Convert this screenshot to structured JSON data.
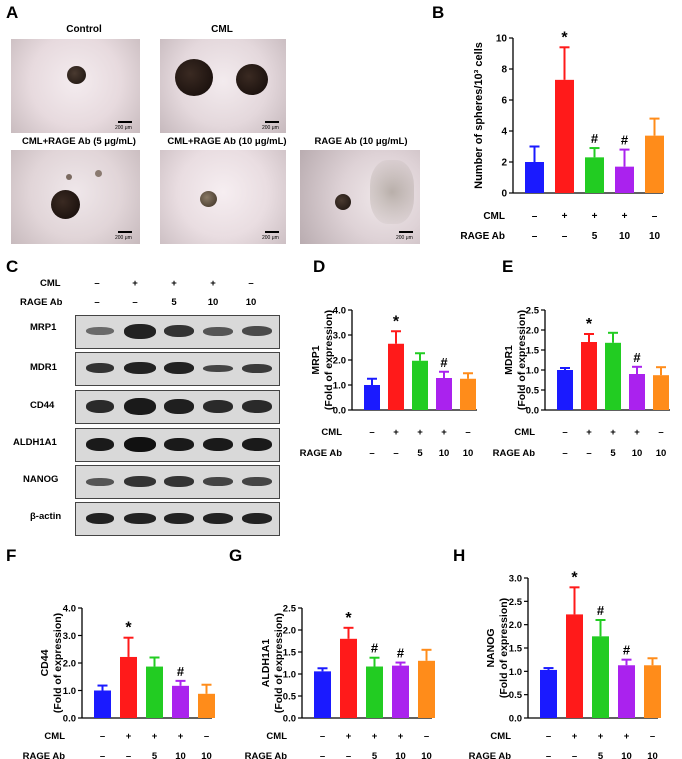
{
  "panel_letters": [
    "A",
    "B",
    "C",
    "D",
    "E",
    "F",
    "G",
    "H"
  ],
  "micrographs": [
    {
      "title": "Control",
      "scale": "200 μm"
    },
    {
      "title": "CML",
      "scale": "200 μm"
    },
    {
      "title": "CML+RAGE Ab (5 μg/mL)",
      "scale": "200 μm"
    },
    {
      "title": "CML+RAGE Ab (10 μg/mL)",
      "scale": "200 μm"
    },
    {
      "title": "RAGE Ab (10 μg/mL)",
      "scale": "200 μm"
    }
  ],
  "conditions": {
    "cml_label": "CML",
    "rage_label": "RAGE Ab",
    "cml": [
      "–",
      "+",
      "+",
      "+",
      "–"
    ],
    "rage": [
      "–",
      "–",
      "5",
      "10",
      "10"
    ]
  },
  "blots": {
    "proteins": [
      "MRP1",
      "MDR1",
      "CD44",
      "ALDH1A1",
      "NANOG",
      "β-actin"
    ],
    "cml": [
      "–",
      "+",
      "+",
      "+",
      "–"
    ],
    "rage": [
      "–",
      "–",
      "5",
      "10",
      "10"
    ]
  },
  "colors": [
    "#1a1aff",
    "#ff1a1a",
    "#22cc22",
    "#aa22ee",
    "#ff8c1a"
  ],
  "chart_data": [
    {
      "type": "bar",
      "panel": "B",
      "categories": [
        "1",
        "2",
        "3",
        "4",
        "5"
      ],
      "values": [
        2.0,
        7.3,
        2.3,
        1.7,
        3.7
      ],
      "errors": [
        1.0,
        2.1,
        0.6,
        1.1,
        1.1
      ],
      "marks": [
        "",
        "*",
        "#",
        "#",
        ""
      ],
      "ylabel": "Number of spheres/10³ cells",
      "ylim": [
        0,
        10
      ],
      "yticks": [
        "0",
        "2",
        "4",
        "6",
        "8",
        "10"
      ]
    },
    {
      "type": "bar",
      "panel": "D",
      "categories": [
        "1",
        "2",
        "3",
        "4",
        "5"
      ],
      "values": [
        1.0,
        2.65,
        1.97,
        1.28,
        1.25
      ],
      "errors": [
        0.25,
        0.5,
        0.3,
        0.25,
        0.22
      ],
      "marks": [
        "",
        "*",
        "",
        "#",
        ""
      ],
      "ylabel": "MRP1",
      "ylabel2": "(Fold of expression)",
      "ylim": [
        0,
        4
      ],
      "yticks": [
        "0.0",
        "1.0",
        "2.0",
        "3.0",
        "4.0"
      ]
    },
    {
      "type": "bar",
      "panel": "E",
      "categories": [
        "1",
        "2",
        "3",
        "4",
        "5"
      ],
      "values": [
        1.0,
        1.7,
        1.68,
        0.9,
        0.87
      ],
      "errors": [
        0.05,
        0.2,
        0.25,
        0.18,
        0.2
      ],
      "marks": [
        "",
        "*",
        "",
        "#",
        ""
      ],
      "ylabel": "MDR1",
      "ylabel2": "(Fold of expression)",
      "ylim": [
        0,
        2.5
      ],
      "yticks": [
        "0.0",
        "0.5",
        "1.0",
        "1.5",
        "2.0",
        "2.5"
      ]
    },
    {
      "type": "bar",
      "panel": "F",
      "categories": [
        "1",
        "2",
        "3",
        "4",
        "5"
      ],
      "values": [
        1.0,
        2.22,
        1.87,
        1.17,
        0.88
      ],
      "errors": [
        0.18,
        0.7,
        0.33,
        0.18,
        0.33
      ],
      "marks": [
        "",
        "*",
        "",
        "#",
        ""
      ],
      "ylabel": "CD44",
      "ylabel2": "(Fold of expression)",
      "ylim": [
        0,
        4
      ],
      "yticks": [
        "0.0",
        "1.0",
        "2.0",
        "3.0",
        "4.0"
      ]
    },
    {
      "type": "bar",
      "panel": "G",
      "categories": [
        "1",
        "2",
        "3",
        "4",
        "5"
      ],
      "values": [
        1.06,
        1.8,
        1.17,
        1.19,
        1.3
      ],
      "errors": [
        0.07,
        0.25,
        0.2,
        0.07,
        0.25
      ],
      "marks": [
        "",
        "*",
        "#",
        "#",
        ""
      ],
      "ylabel": "ALDH1A1",
      "ylabel2": "(Fold of expression)",
      "ylim": [
        0,
        2.5
      ],
      "yticks": [
        "0.0",
        "0.5",
        "1.0",
        "1.5",
        "2.0",
        "2.5"
      ]
    },
    {
      "type": "bar",
      "panel": "H",
      "categories": [
        "1",
        "2",
        "3",
        "4",
        "5"
      ],
      "values": [
        1.03,
        2.22,
        1.75,
        1.13,
        1.13
      ],
      "errors": [
        0.04,
        0.58,
        0.35,
        0.12,
        0.15
      ],
      "marks": [
        "",
        "*",
        "#",
        "#",
        ""
      ],
      "ylabel": "NANOG",
      "ylabel2": "(Fold of expression)",
      "ylim": [
        0,
        3
      ],
      "yticks": [
        "0.0",
        "0.5",
        "1.0",
        "1.5",
        "2.0",
        "2.5",
        "3.0"
      ]
    }
  ]
}
